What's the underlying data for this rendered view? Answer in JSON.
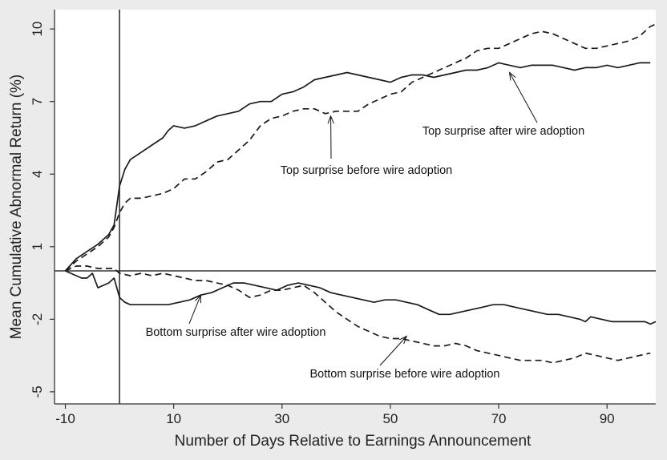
{
  "chart_data": {
    "type": "line",
    "title": "",
    "xlabel": "Number of Days Relative to Earnings Announcement",
    "ylabel": "Mean Cumulative Abnormal Return (%)",
    "xlim": [
      -12,
      99
    ],
    "ylim": [
      -5.5,
      10.8
    ],
    "xticks": [
      -10,
      10,
      30,
      50,
      70,
      90
    ],
    "xtick_labels": [
      "-10",
      "10",
      "30",
      "50",
      "70",
      "90"
    ],
    "yticks": [
      -5,
      -2,
      1,
      4,
      7,
      10
    ],
    "ytick_labels": [
      "-5",
      "-2",
      "1",
      "4",
      "7",
      "10"
    ],
    "vline_x": 0,
    "hline_y": 0,
    "grid": false,
    "legend": "none",
    "series": [
      {
        "dash": "solid",
        "x": [
          -10,
          -8,
          -6,
          -4,
          -2,
          -1,
          0,
          1,
          2,
          4,
          6,
          8,
          9,
          10,
          12,
          14,
          16,
          18,
          20,
          22,
          24,
          26,
          28,
          30,
          32,
          34,
          36,
          38,
          40,
          42,
          44,
          46,
          48,
          50,
          52,
          54,
          56,
          58,
          60,
          62,
          64,
          66,
          68,
          70,
          72,
          74,
          76,
          78,
          80,
          82,
          84,
          86,
          88,
          90,
          92,
          94,
          96,
          98
        ],
        "y": [
          0.0,
          0.5,
          0.8,
          1.1,
          1.5,
          1.9,
          3.5,
          4.2,
          4.6,
          4.9,
          5.2,
          5.5,
          5.8,
          6.0,
          5.9,
          6.0,
          6.2,
          6.4,
          6.5,
          6.6,
          6.9,
          7.0,
          7.0,
          7.3,
          7.4,
          7.6,
          7.9,
          8.0,
          8.1,
          8.2,
          8.1,
          8.0,
          7.9,
          7.8,
          8.0,
          8.1,
          8.1,
          8.0,
          8.1,
          8.2,
          8.3,
          8.3,
          8.4,
          8.6,
          8.5,
          8.4,
          8.5,
          8.5,
          8.5,
          8.4,
          8.3,
          8.4,
          8.4,
          8.5,
          8.4,
          8.5,
          8.6,
          8.6
        ]
      },
      {
        "dash": "dashed",
        "x": [
          -10,
          -8,
          -6,
          -4,
          -2,
          -1,
          0,
          1,
          2,
          4,
          6,
          8,
          10,
          12,
          14,
          16,
          18,
          20,
          22,
          24,
          26,
          28,
          30,
          32,
          34,
          36,
          38,
          40,
          42,
          44,
          46,
          48,
          50,
          52,
          54,
          56,
          58,
          60,
          62,
          64,
          66,
          68,
          70,
          72,
          74,
          76,
          78,
          80,
          82,
          84,
          86,
          88,
          90,
          92,
          94,
          96,
          98,
          99
        ],
        "y": [
          0.0,
          0.4,
          0.7,
          1.0,
          1.4,
          1.8,
          2.4,
          2.8,
          3.0,
          3.0,
          3.1,
          3.2,
          3.4,
          3.8,
          3.8,
          4.1,
          4.5,
          4.6,
          5.0,
          5.4,
          6.0,
          6.3,
          6.4,
          6.6,
          6.7,
          6.7,
          6.5,
          6.6,
          6.6,
          6.6,
          6.9,
          7.1,
          7.3,
          7.4,
          7.8,
          8.0,
          8.2,
          8.4,
          8.6,
          8.8,
          9.1,
          9.2,
          9.2,
          9.4,
          9.6,
          9.8,
          9.9,
          9.8,
          9.6,
          9.4,
          9.2,
          9.2,
          9.3,
          9.4,
          9.5,
          9.7,
          10.1,
          10.2
        ]
      },
      {
        "dash": "solid",
        "x": [
          -10,
          -8,
          -7,
          -6,
          -5,
          -4,
          -3,
          -2,
          -1,
          0,
          1,
          2,
          3,
          5,
          7,
          9,
          11,
          13,
          15,
          17,
          19,
          21,
          23,
          25,
          27,
          29,
          31,
          33,
          35,
          37,
          39,
          41,
          43,
          45,
          47,
          49,
          51,
          53,
          55,
          57,
          59,
          61,
          63,
          65,
          67,
          69,
          71,
          73,
          75,
          77,
          79,
          81,
          83,
          85,
          86,
          87,
          89,
          91,
          93,
          95,
          97,
          98,
          99
        ],
        "y": [
          0.0,
          -0.2,
          -0.3,
          -0.3,
          -0.1,
          -0.7,
          -0.6,
          -0.5,
          -0.3,
          -1.1,
          -1.3,
          -1.4,
          -1.4,
          -1.4,
          -1.4,
          -1.4,
          -1.3,
          -1.2,
          -1.0,
          -0.9,
          -0.7,
          -0.5,
          -0.5,
          -0.6,
          -0.7,
          -0.8,
          -0.6,
          -0.5,
          -0.6,
          -0.7,
          -0.9,
          -1.0,
          -1.1,
          -1.2,
          -1.3,
          -1.2,
          -1.2,
          -1.3,
          -1.4,
          -1.6,
          -1.8,
          -1.8,
          -1.7,
          -1.6,
          -1.5,
          -1.4,
          -1.4,
          -1.5,
          -1.6,
          -1.7,
          -1.8,
          -1.8,
          -1.9,
          -2.0,
          -2.1,
          -1.9,
          -2.0,
          -2.1,
          -2.1,
          -2.1,
          -2.1,
          -2.2,
          -2.1
        ]
      },
      {
        "dash": "dashed",
        "x": [
          -10,
          -8,
          -6,
          -4,
          -2,
          -1,
          0,
          2,
          4,
          6,
          8,
          10,
          12,
          14,
          16,
          18,
          20,
          22,
          24,
          26,
          28,
          30,
          32,
          34,
          36,
          38,
          40,
          42,
          44,
          46,
          48,
          50,
          52,
          54,
          56,
          58,
          60,
          62,
          64,
          66,
          68,
          70,
          72,
          74,
          76,
          78,
          80,
          82,
          84,
          86,
          88,
          90,
          92,
          94,
          96,
          98
        ],
        "y": [
          0.0,
          0.2,
          0.2,
          0.1,
          0.1,
          0.1,
          -0.1,
          -0.2,
          -0.1,
          -0.2,
          -0.1,
          -0.2,
          -0.3,
          -0.4,
          -0.4,
          -0.5,
          -0.6,
          -0.8,
          -1.1,
          -1.0,
          -0.8,
          -0.8,
          -0.7,
          -0.6,
          -0.9,
          -1.3,
          -1.7,
          -2.0,
          -2.3,
          -2.5,
          -2.7,
          -2.8,
          -2.8,
          -2.9,
          -3.0,
          -3.1,
          -3.1,
          -3.0,
          -3.1,
          -3.3,
          -3.4,
          -3.5,
          -3.6,
          -3.7,
          -3.7,
          -3.7,
          -3.8,
          -3.7,
          -3.6,
          -3.4,
          -3.5,
          -3.6,
          -3.7,
          -3.6,
          -3.5,
          -3.4
        ]
      }
    ],
    "annotations": [
      {
        "text": "Top surprise after wire adoption",
        "arrow_to": [
          72,
          8.2
        ]
      },
      {
        "text": "Top surprise before wire adoption",
        "arrow_to": [
          39,
          6.4
        ]
      },
      {
        "text": "Bottom surprise after wire adoption",
        "arrow_to": [
          15,
          -1.0
        ]
      },
      {
        "text": "Bottom surprise before wire adoption",
        "arrow_to": [
          53,
          -2.7
        ]
      }
    ]
  }
}
